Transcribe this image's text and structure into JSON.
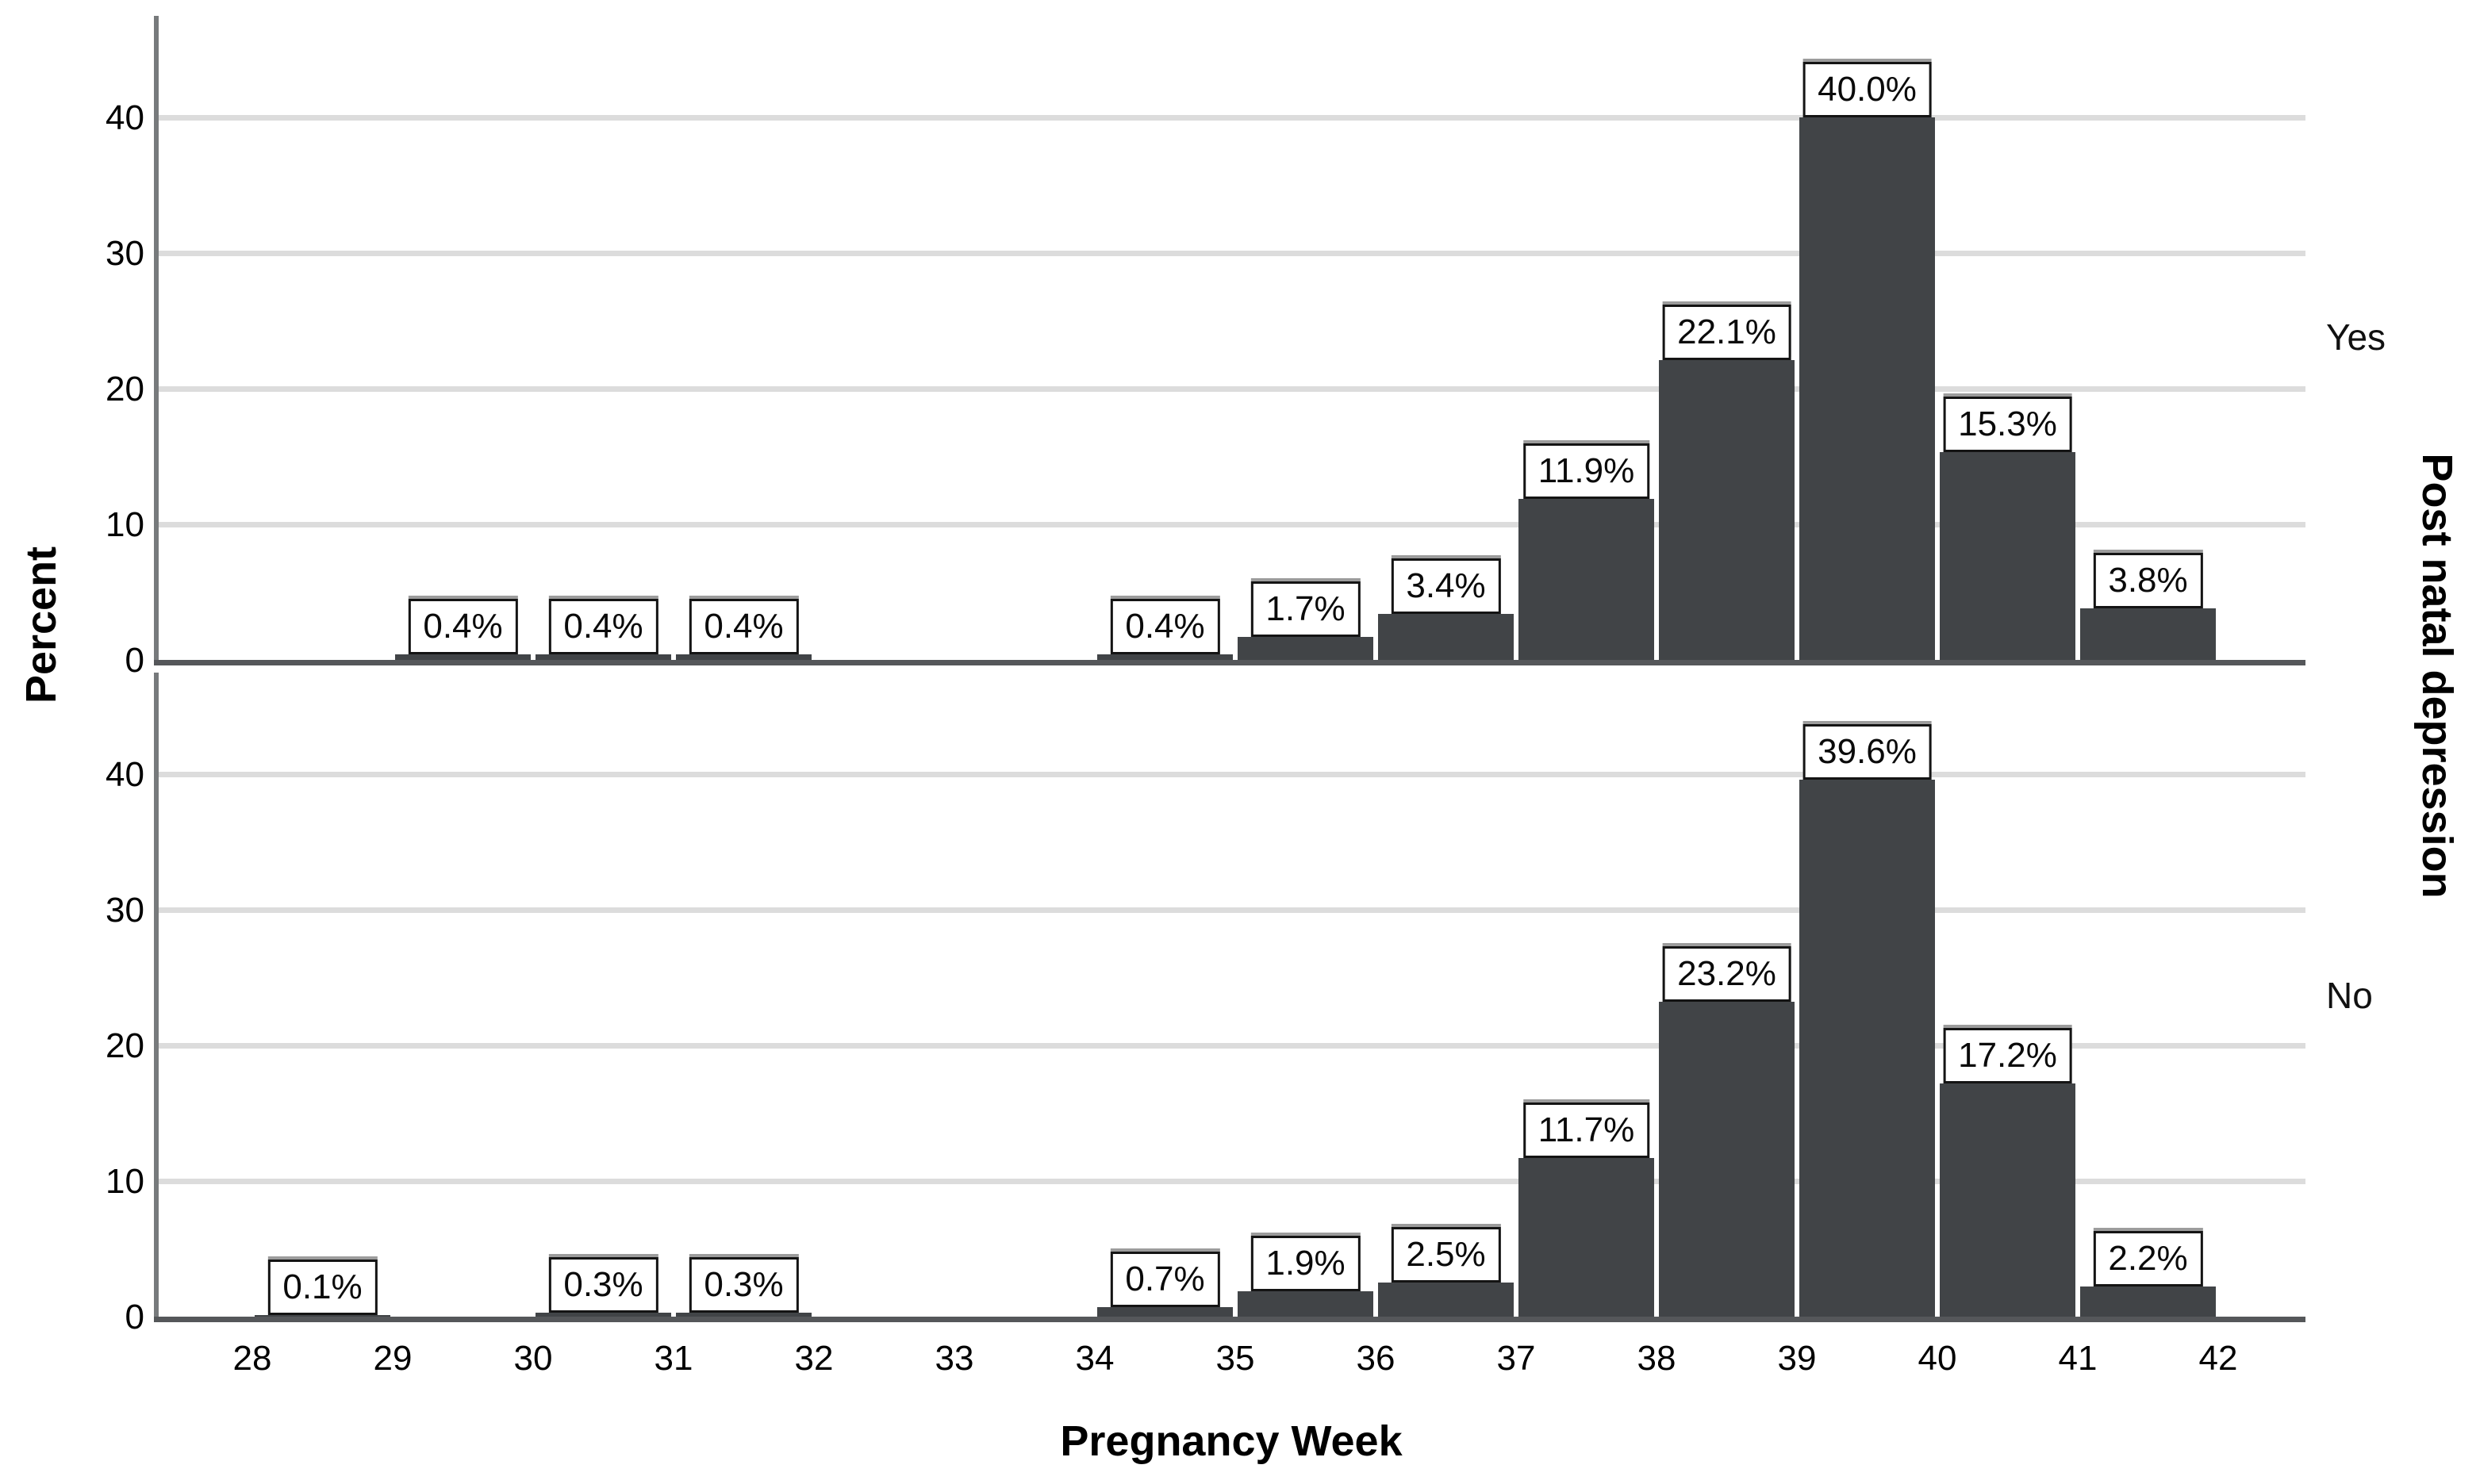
{
  "chart_data": {
    "type": "bar",
    "subtype": "faceted-histogram",
    "title": "",
    "xlabel": "Pregnancy Week",
    "ylabel": "Percent",
    "facet_title": "Post natal depression",
    "x_ticks": [
      28,
      29,
      30,
      31,
      32,
      33,
      34,
      35,
      36,
      37,
      38,
      39,
      40,
      41,
      42
    ],
    "y_ticks": [
      0,
      10,
      20,
      30,
      40
    ],
    "ylim": [
      0,
      47.5
    ],
    "xlim": [
      27.3,
      42.65
    ],
    "bin_width": 1,
    "grid": "horizontal-only",
    "panels": [
      {
        "label": "Yes",
        "bars": [
          {
            "bin_start": 29,
            "value": 0.4,
            "label": "0.4%"
          },
          {
            "bin_start": 30,
            "value": 0.4,
            "label": "0.4%"
          },
          {
            "bin_start": 31,
            "value": 0.4,
            "label": "0.4%"
          },
          {
            "bin_start": 34,
            "value": 0.4,
            "label": "0.4%"
          },
          {
            "bin_start": 35,
            "value": 1.7,
            "label": "1.7%"
          },
          {
            "bin_start": 36,
            "value": 3.4,
            "label": "3.4%"
          },
          {
            "bin_start": 37,
            "value": 11.9,
            "label": "11.9%"
          },
          {
            "bin_start": 38,
            "value": 22.1,
            "label": "22.1%"
          },
          {
            "bin_start": 39,
            "value": 40.0,
            "label": "40.0%"
          },
          {
            "bin_start": 40,
            "value": 15.3,
            "label": "15.3%"
          },
          {
            "bin_start": 41,
            "value": 3.8,
            "label": "3.8%"
          }
        ]
      },
      {
        "label": "No",
        "bars": [
          {
            "bin_start": 28,
            "value": 0.1,
            "label": "0.1%"
          },
          {
            "bin_start": 30,
            "value": 0.3,
            "label": "0.3%"
          },
          {
            "bin_start": 31,
            "value": 0.3,
            "label": "0.3%"
          },
          {
            "bin_start": 34,
            "value": 0.7,
            "label": "0.7%"
          },
          {
            "bin_start": 35,
            "value": 1.9,
            "label": "1.9%"
          },
          {
            "bin_start": 36,
            "value": 2.5,
            "label": "2.5%"
          },
          {
            "bin_start": 37,
            "value": 11.7,
            "label": "11.7%"
          },
          {
            "bin_start": 38,
            "value": 23.2,
            "label": "23.2%"
          },
          {
            "bin_start": 39,
            "value": 39.6,
            "label": "39.6%"
          },
          {
            "bin_start": 40,
            "value": 17.2,
            "label": "17.2%"
          },
          {
            "bin_start": 41,
            "value": 2.2,
            "label": "2.2%"
          }
        ]
      }
    ],
    "colors": {
      "bar_fill": "#414447",
      "gridline": "#DCDCDC",
      "x_axis_line": "#55575A",
      "y_axis_line": "#777A7C",
      "label_box_bg": "#FFFFFF",
      "label_box_border": "#141414",
      "text": "#000000"
    }
  }
}
